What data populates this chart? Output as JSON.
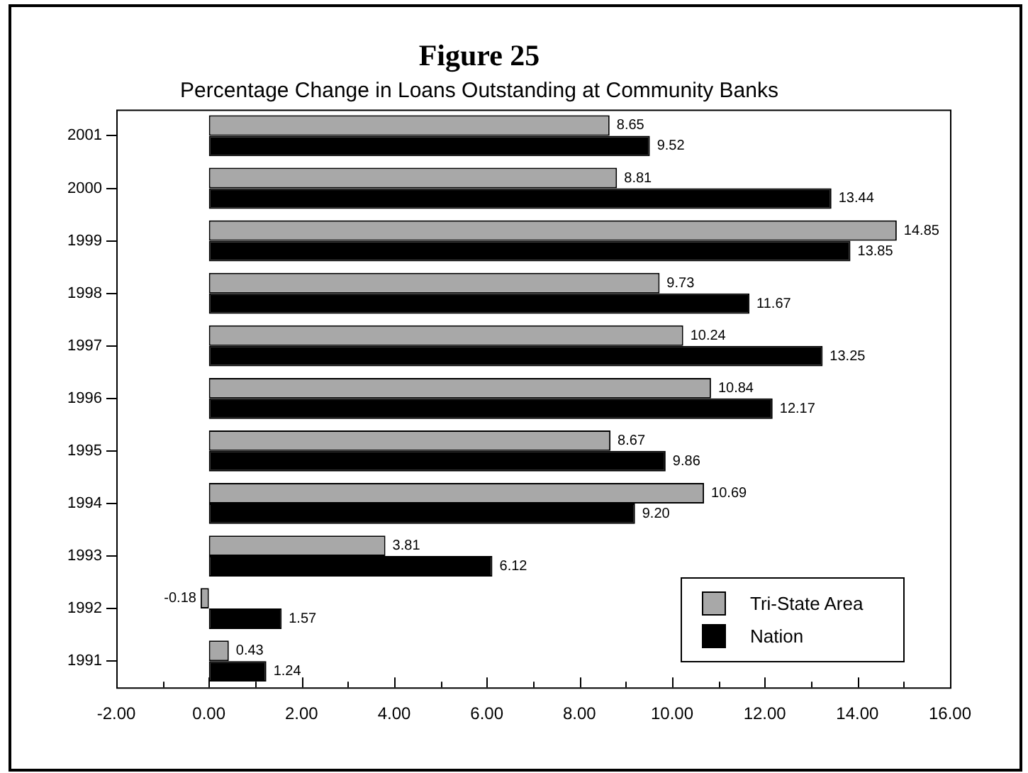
{
  "chart_data": {
    "type": "bar",
    "orientation": "horizontal",
    "title": "Figure 25",
    "subtitle": "Percentage Change in Loans Outstanding at Community Banks",
    "categories": [
      "2001",
      "2000",
      "1999",
      "1998",
      "1997",
      "1996",
      "1995",
      "1994",
      "1993",
      "1992",
      "1991"
    ],
    "series": [
      {
        "name": "Tri-State Area",
        "color": "#a8a8a8",
        "values": [
          8.65,
          8.81,
          14.85,
          9.73,
          10.24,
          10.84,
          8.67,
          10.69,
          3.81,
          -0.18,
          0.43
        ],
        "value_labels": [
          "8.65",
          "8.81",
          "14.85",
          "9.73",
          "10.24",
          "10.84",
          "8.67",
          "10.69",
          "3.81",
          "-0.18",
          "0.43"
        ]
      },
      {
        "name": "Nation",
        "color": "#000000",
        "values": [
          9.52,
          13.44,
          13.85,
          11.67,
          13.25,
          12.17,
          9.86,
          9.2,
          6.12,
          1.57,
          1.24
        ],
        "value_labels": [
          "9.52",
          "13.44",
          "13.85",
          "11.67",
          "13.25",
          "12.17",
          "9.86",
          "9.20",
          "6.12",
          "1.57",
          "1.24"
        ]
      }
    ],
    "xlim": [
      -2,
      16
    ],
    "xticks": [
      {
        "value": -2,
        "label": "-2.00"
      },
      {
        "value": -1,
        "label": null
      },
      {
        "value": 0,
        "label": "0.00"
      },
      {
        "value": 1,
        "label": null
      },
      {
        "value": 2,
        "label": "2.00"
      },
      {
        "value": 3,
        "label": null
      },
      {
        "value": 4,
        "label": "4.00"
      },
      {
        "value": 5,
        "label": null
      },
      {
        "value": 6,
        "label": "6.00"
      },
      {
        "value": 7,
        "label": null
      },
      {
        "value": 8,
        "label": "8.00"
      },
      {
        "value": 9,
        "label": null
      },
      {
        "value": 10,
        "label": "10.00"
      },
      {
        "value": 11,
        "label": null
      },
      {
        "value": 12,
        "label": "12.00"
      },
      {
        "value": 13,
        "label": null
      },
      {
        "value": 14,
        "label": "14.00"
      },
      {
        "value": 15,
        "label": null
      },
      {
        "value": 16,
        "label": "16.00"
      }
    ],
    "legend": "bottom right"
  }
}
